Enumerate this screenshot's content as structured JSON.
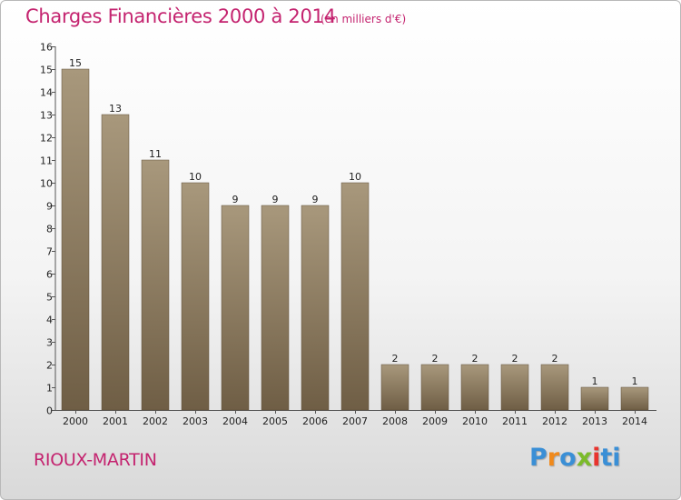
{
  "header": {
    "title": "Charges Financières 2000 à 2014",
    "unit": "(en milliers d'€)"
  },
  "footer": {
    "commune": "RIOUX-MARTIN",
    "logo_text": "Proxiti"
  },
  "colors": {
    "accent": "#c4236f",
    "bar_top": "#a8987c",
    "bar_bottom": "#6f5e45"
  },
  "chart_data": {
    "type": "bar",
    "title": "Charges Financières 2000 à 2014",
    "subtitle": "(en milliers d'€)",
    "xlabel": "",
    "ylabel": "",
    "categories": [
      "2000",
      "2001",
      "2002",
      "2003",
      "2004",
      "2005",
      "2006",
      "2007",
      "2008",
      "2009",
      "2010",
      "2011",
      "2012",
      "2013",
      "2014"
    ],
    "values": [
      15,
      13,
      11,
      10,
      9,
      9,
      9,
      10,
      2,
      2,
      2,
      2,
      2,
      1,
      1
    ],
    "data_labels": [
      "15",
      "13",
      "11",
      "10",
      "9",
      "9",
      "9",
      "10",
      "2",
      "2",
      "2",
      "2",
      "2",
      "1",
      "1"
    ],
    "ylim": [
      0,
      16
    ],
    "yticks": [
      0,
      1,
      2,
      3,
      4,
      5,
      6,
      7,
      8,
      9,
      10,
      11,
      12,
      13,
      14,
      15,
      16
    ],
    "ytick_labels": [
      "0",
      "1",
      "2",
      "3",
      "4",
      "5",
      "6",
      "7",
      "8",
      "9",
      "10",
      "11",
      "12",
      "13",
      "14",
      "15",
      "16"
    ],
    "grid": false,
    "legend": "none"
  }
}
